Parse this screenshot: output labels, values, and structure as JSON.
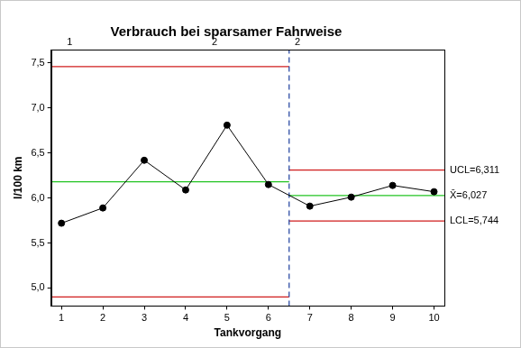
{
  "chart_data": {
    "type": "line",
    "title": "Verbrauch bei sparsamer Fahrweise",
    "x_label": "Tankvorgang",
    "y_label": "l/100 km",
    "x": [
      1,
      2,
      3,
      4,
      5,
      6,
      7,
      8,
      9,
      10
    ],
    "values": [
      5.72,
      5.89,
      6.42,
      6.09,
      6.81,
      6.15,
      5.91,
      6.01,
      6.14,
      6.07
    ],
    "color": "#000000",
    "marker": "circle",
    "line_style": "solid",
    "xlim": [
      0.75,
      10.25
    ],
    "xticks": [
      1,
      2,
      3,
      4,
      5,
      6,
      7,
      8,
      9,
      10
    ],
    "ylim": [
      4.8,
      7.65
    ],
    "yticks": [
      {
        "value": 5,
        "label": "5,0"
      },
      {
        "value": 5.5,
        "label": "5,5"
      },
      {
        "value": 6,
        "label": "6,0"
      },
      {
        "value": 6.5,
        "label": "6,5"
      },
      {
        "value": 7,
        "label": "7,0"
      },
      {
        "value": 7.5,
        "label": "7,5"
      }
    ],
    "grid": false,
    "stage_break": 6.5,
    "stages": [
      {
        "ucl": 7.46,
        "center": 6.18,
        "lcl": 4.9
      },
      {
        "ucl": 6.311,
        "center": 6.027,
        "lcl": 5.744,
        "ucl_label": "UCL=6,311",
        "center_label": "X̄=6,027",
        "lcl_label": "LCL=5,744"
      }
    ],
    "annotations": [
      {
        "x": 1.2,
        "text": "1"
      },
      {
        "x": 4.7,
        "text": "2"
      },
      {
        "x": 6.7,
        "text": "2"
      }
    ]
  }
}
